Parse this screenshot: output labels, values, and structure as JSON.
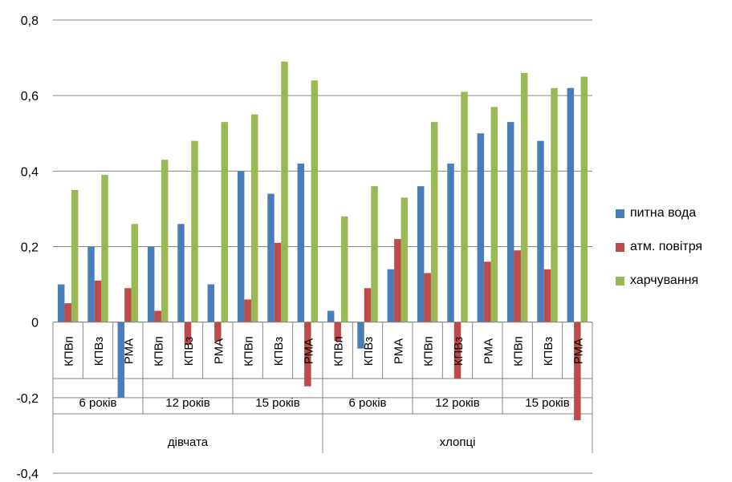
{
  "chart_data": {
    "type": "bar",
    "ylim": [
      -0.4,
      0.8
    ],
    "yticks": [
      "-0,4",
      "-0,2",
      "0",
      "0,2",
      "0,4",
      "0,6",
      "0,8"
    ],
    "ytick_values": [
      -0.4,
      -0.2,
      0,
      0.2,
      0.4,
      0.6,
      0.8
    ],
    "grid": true,
    "legend_position": "right",
    "groups": [
      {
        "label": "дівчата",
        "ages": [
          {
            "label": "6 років",
            "subs": [
              "КПВп",
              "КПВз",
              "РМА"
            ]
          },
          {
            "label": "12 років",
            "subs": [
              "КПВп",
              "КПВз",
              "РМА"
            ]
          },
          {
            "label": "15 років",
            "subs": [
              "КПВп",
              "КПВз",
              "РМА"
            ]
          }
        ]
      },
      {
        "label": "хлопці",
        "ages": [
          {
            "label": "6 років",
            "subs": [
              "КПВп",
              "КПВз",
              "РМА"
            ]
          },
          {
            "label": "12 років",
            "subs": [
              "КПВп",
              "КПВз",
              "РМА"
            ]
          },
          {
            "label": "15 років",
            "subs": [
              "КПВп",
              "КПВз",
              "РМА"
            ]
          }
        ]
      }
    ],
    "series": [
      {
        "name": "питна вода",
        "color": "#4a7ebb",
        "values": [
          0.1,
          0.2,
          -0.2,
          0.2,
          0.26,
          0.1,
          0.4,
          0.34,
          0.42,
          0.03,
          -0.07,
          0.14,
          0.36,
          0.42,
          0.5,
          0.53,
          0.48,
          0.62
        ]
      },
      {
        "name": "атм. повітря",
        "color": "#be4b48",
        "values": [
          0.05,
          0.11,
          0.09,
          0.03,
          -0.06,
          -0.05,
          0.06,
          0.21,
          -0.17,
          -0.05,
          0.09,
          0.22,
          0.13,
          -0.15,
          0.16,
          0.19,
          0.14,
          -0.26
        ]
      },
      {
        "name": "харчування",
        "color": "#98b954",
        "values": [
          0.35,
          0.39,
          0.26,
          0.43,
          0.48,
          0.53,
          0.55,
          0.69,
          0.64,
          0.28,
          0.36,
          0.33,
          0.53,
          0.61,
          0.57,
          0.66,
          0.62,
          0.65
        ]
      }
    ]
  }
}
